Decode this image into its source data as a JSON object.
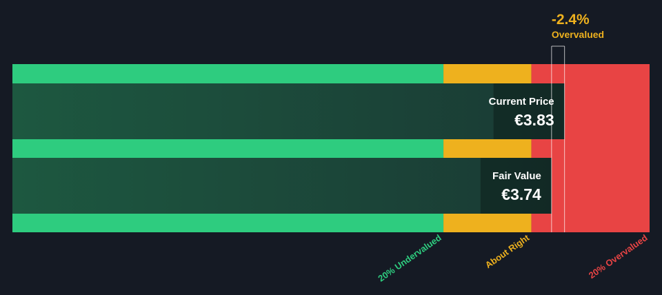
{
  "chart_data": {
    "type": "bar",
    "currency": "€",
    "scale_max": 4.42,
    "zones": [
      {
        "name": "undervalued",
        "label": "20% Undervalued",
        "from": 0,
        "to": 2.99,
        "color": "#2ecc7f"
      },
      {
        "name": "about-right",
        "label": "About Right",
        "from": 2.99,
        "to": 3.6,
        "color": "#eeb11e"
      },
      {
        "name": "overvalued",
        "label": "20% Overvalued",
        "from": 3.6,
        "to": 4.42,
        "color": "#e84444"
      }
    ],
    "bars": [
      {
        "name": "current-price",
        "label": "Current Price",
        "value": 3.83,
        "display": "€3.83"
      },
      {
        "name": "fair-value",
        "label": "Fair Value",
        "value": 3.74,
        "display": "€3.74"
      }
    ],
    "difference": {
      "value": "-2.4%",
      "label": "Overvalued",
      "color": "#eeb11e"
    }
  }
}
